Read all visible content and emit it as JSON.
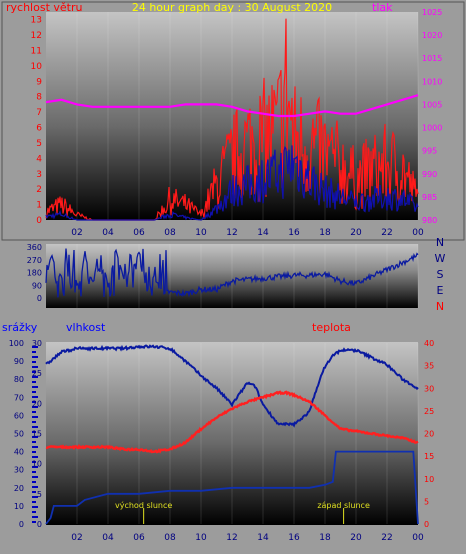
{
  "colors": {
    "speed": "#ff1a1a",
    "speed_base": "#1010b0",
    "pressure": "#ff00ff",
    "direction": "#0a1aa0",
    "humidity": "#0a1aa0",
    "temperature": "#ff2020",
    "rain": "#1030b0",
    "sun": "#e0e020",
    "red_label": "#ff0000",
    "blue_label": "#0000ff",
    "title": "#ffff00"
  },
  "chart_data": [
    {
      "type": "line",
      "title": "24 hour graph day : 30 August 2020",
      "left_label": "rychlost větru",
      "right_label": "tlak",
      "x_ticks": [
        "02",
        "04",
        "06",
        "08",
        "10",
        "12",
        "14",
        "16",
        "18",
        "20",
        "22",
        "00"
      ],
      "y_left_ticks": [
        "0",
        "1",
        "2",
        "3",
        "4",
        "5",
        "6",
        "7",
        "8",
        "9",
        "10",
        "11",
        "12",
        "13"
      ],
      "y_left_lim": [
        0,
        13.5
      ],
      "y_right_ticks": [
        "980",
        "985",
        "990",
        "995",
        "1000",
        "1005",
        "1010",
        "1015",
        "1020",
        "1025"
      ],
      "y_right_lim": [
        980,
        1025
      ],
      "x_lim": [
        0,
        24
      ],
      "series": [
        {
          "key": "wind_speed",
          "x": [
            0,
            1,
            2,
            3,
            4,
            5,
            6,
            7,
            8,
            9,
            10,
            11,
            12,
            13,
            14,
            15,
            15.5,
            16,
            17,
            18,
            19,
            20,
            21,
            22,
            23,
            24
          ],
          "values": [
            0.8,
            1.5,
            0.5,
            0,
            0,
            0,
            0,
            0,
            2,
            1.5,
            0.5,
            3.5,
            6,
            7.5,
            8,
            9,
            13,
            8,
            7.5,
            6.5,
            5.5,
            4,
            5,
            5.5,
            5,
            2
          ]
        },
        {
          "key": "wind_speed_base",
          "x": [
            0,
            1,
            2,
            3,
            4,
            5,
            6,
            7,
            8,
            9,
            10,
            11,
            12,
            13,
            14,
            15,
            16,
            17,
            18,
            19,
            20,
            21,
            22,
            23,
            24
          ],
          "values": [
            0.3,
            0.5,
            0,
            0,
            0,
            0,
            0,
            0,
            0.5,
            0.2,
            0,
            1,
            2.5,
            3,
            3.5,
            4,
            5,
            3.5,
            2.5,
            2,
            1.5,
            1.8,
            2,
            1.8,
            1
          ]
        },
        {
          "key": "pressure",
          "x": [
            0,
            1,
            2,
            3,
            4,
            5,
            6,
            7,
            8,
            9,
            10,
            11,
            12,
            13,
            14,
            15,
            16,
            17,
            18,
            19,
            20,
            21,
            22,
            23,
            24
          ],
          "values": [
            1005.5,
            1006,
            1005,
            1004.5,
            1004.5,
            1004.5,
            1004.5,
            1004.5,
            1004.5,
            1005,
            1005,
            1005,
            1004.5,
            1003.5,
            1003,
            1002.5,
            1002.5,
            1003,
            1003.5,
            1003,
            1003,
            1004,
            1005,
            1006,
            1007
          ]
        }
      ]
    },
    {
      "type": "line",
      "right_labels": [
        "N",
        "W",
        "S",
        "E",
        "N"
      ],
      "y_ticks": [
        "0",
        "90",
        "180",
        "270",
        "360"
      ],
      "y_lim": [
        0,
        360
      ],
      "x_lim": [
        0,
        24
      ],
      "series": [
        {
          "key": "wind_direction",
          "x": [
            0,
            0.5,
            1,
            1.5,
            2,
            2.5,
            3,
            3.5,
            4,
            4.5,
            5,
            5.5,
            6,
            6.5,
            7,
            7.5,
            8,
            9,
            10,
            11,
            12,
            13,
            14,
            15,
            16,
            17,
            18,
            19,
            20,
            21,
            22,
            23,
            24
          ],
          "values": [
            220,
            300,
            120,
            320,
            90,
            300,
            100,
            330,
            80,
            330,
            150,
            200,
            340,
            60,
            150,
            40,
            40,
            30,
            60,
            60,
            120,
            130,
            140,
            150,
            160,
            160,
            170,
            120,
            100,
            150,
            200,
            250,
            300
          ]
        }
      ]
    },
    {
      "type": "line",
      "left_label": "srážky",
      "mid_label": "vlhkost",
      "right_label": "teplota",
      "x_ticks": [
        "02",
        "04",
        "06",
        "08",
        "10",
        "12",
        "14",
        "16",
        "18",
        "20",
        "22",
        "00"
      ],
      "y_rain_ticks": [
        "0",
        "10",
        "20",
        "30",
        "40",
        "50",
        "60",
        "70",
        "80",
        "90",
        "100"
      ],
      "y_humidity_ticks": [
        "0",
        "5",
        "10",
        "15",
        "20",
        "25",
        "30"
      ],
      "y_temp_ticks": [
        "0",
        "5",
        "10",
        "15",
        "20",
        "25",
        "30",
        "35",
        "40"
      ],
      "annotations": [
        "východ slunce",
        "západ slunce"
      ],
      "x_lim": [
        0,
        24
      ],
      "series": [
        {
          "key": "humidity",
          "x": [
            0,
            1,
            2,
            3,
            4,
            5,
            6,
            7,
            8,
            9,
            10,
            11,
            12,
            12.5,
            13,
            13.5,
            14,
            15,
            16,
            17,
            17.5,
            18,
            18.5,
            19,
            20,
            21,
            22,
            23,
            24
          ],
          "values": [
            88,
            95,
            97,
            97,
            97,
            97,
            98,
            98,
            97,
            90,
            82,
            75,
            66,
            72,
            78,
            76,
            66,
            55,
            55,
            62,
            76,
            87,
            93,
            96,
            96,
            92,
            88,
            80,
            75
          ]
        },
        {
          "key": "temperature",
          "x": [
            0,
            1,
            2,
            3,
            4,
            5,
            6,
            7,
            8,
            9,
            10,
            11,
            12,
            13,
            14,
            15,
            15.5,
            16,
            17,
            18,
            19,
            20,
            21,
            22,
            23,
            24
          ],
          "values": [
            17,
            17,
            17,
            17,
            17,
            16.5,
            16.5,
            16,
            16.5,
            18,
            21,
            23.5,
            25.5,
            27,
            28,
            29,
            29,
            28.5,
            27,
            24,
            21,
            20.5,
            20,
            19.5,
            19,
            18
          ]
        },
        {
          "key": "rain",
          "x": [
            0,
            0.3,
            0.5,
            2,
            2.5,
            4,
            6,
            8,
            10,
            12,
            14,
            16,
            17,
            18,
            18.5,
            18.7,
            20,
            22,
            23.7,
            24
          ],
          "values": [
            0,
            1,
            3,
            3,
            4,
            5,
            5,
            5.5,
            5.5,
            6,
            6,
            6,
            6,
            6.5,
            7,
            12,
            12,
            12,
            12,
            0
          ]
        }
      ]
    }
  ]
}
